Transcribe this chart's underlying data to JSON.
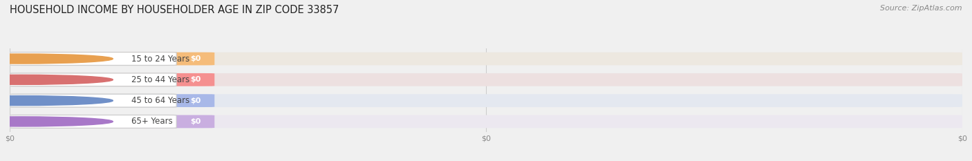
{
  "title": "HOUSEHOLD INCOME BY HOUSEHOLDER AGE IN ZIP CODE 33857",
  "source": "Source: ZipAtlas.com",
  "categories": [
    "15 to 24 Years",
    "25 to 44 Years",
    "45 to 64 Years",
    "65+ Years"
  ],
  "values": [
    0,
    0,
    0,
    0
  ],
  "bar_colors": [
    "#f5bc7a",
    "#f59090",
    "#a8b8e8",
    "#c9aee0"
  ],
  "bar_bg_colors": [
    "#ede8e0",
    "#ede0e0",
    "#e4e8f0",
    "#ece8f0"
  ],
  "dot_colors": [
    "#e8a050",
    "#d87070",
    "#7090c8",
    "#a878c8"
  ],
  "white_pill_color": "#ffffff",
  "background_color": "#f0f0f0",
  "title_color": "#222222",
  "source_color": "#888888",
  "tick_label_color": "#888888",
  "value_label": "$0",
  "figsize": [
    14.06,
    2.33
  ],
  "dpi": 100
}
